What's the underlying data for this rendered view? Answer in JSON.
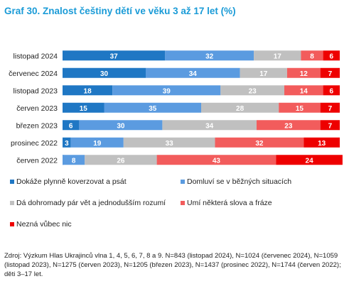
{
  "title": "Graf 30. Znalost češtiny dětí ve věku 3 až 17 let (%)",
  "colors": {
    "s1": "#1f77c4",
    "s2": "#5b9be0",
    "s3": "#c0c0c0",
    "s4": "#f25c5c",
    "s5": "#ee0000"
  },
  "chart_data": {
    "type": "bar",
    "orientation": "horizontal",
    "stacked": true,
    "categories": [
      "listopad 2024",
      "červenec 2024",
      "listopad 2023",
      "červen 2023",
      "březen 2023",
      "prosinec 2022",
      "červen 2022"
    ],
    "series": [
      {
        "name": "Dokáže plynně koverzovat a psát",
        "color": "#1f77c4",
        "values": [
          37,
          30,
          18,
          15,
          6,
          3,
          0
        ]
      },
      {
        "name": "Domluví se v běžných situacích",
        "color": "#5b9be0",
        "values": [
          32,
          34,
          39,
          35,
          30,
          19,
          8
        ]
      },
      {
        "name": "Dá dohromady pár vět a jednodušším rozumí",
        "color": "#c0c0c0",
        "values": [
          17,
          17,
          23,
          28,
          34,
          33,
          26
        ]
      },
      {
        "name": "Umí některá slova a fráze",
        "color": "#f25c5c",
        "values": [
          8,
          12,
          14,
          15,
          23,
          32,
          43
        ]
      },
      {
        "name": "Nezná vůbec nic",
        "color": "#ee0000",
        "values": [
          6,
          7,
          6,
          7,
          7,
          13,
          24
        ]
      }
    ],
    "xlim": [
      0,
      100
    ],
    "grid": false,
    "legend": "bottom"
  },
  "source": "Zdroj: Výzkum Hlas Ukrajinců vlna 1, 4, 5, 6, 7, 8 a 9. N=843 (listopad 2024), N=1024 (červenec 2024), N=1059 (listopad 2023), N=1275 (červen 2023), N=1205 (březen 2023), N=1437 (prosinec 2022), N=1744 (červen 2022); děti 3–17 let."
}
